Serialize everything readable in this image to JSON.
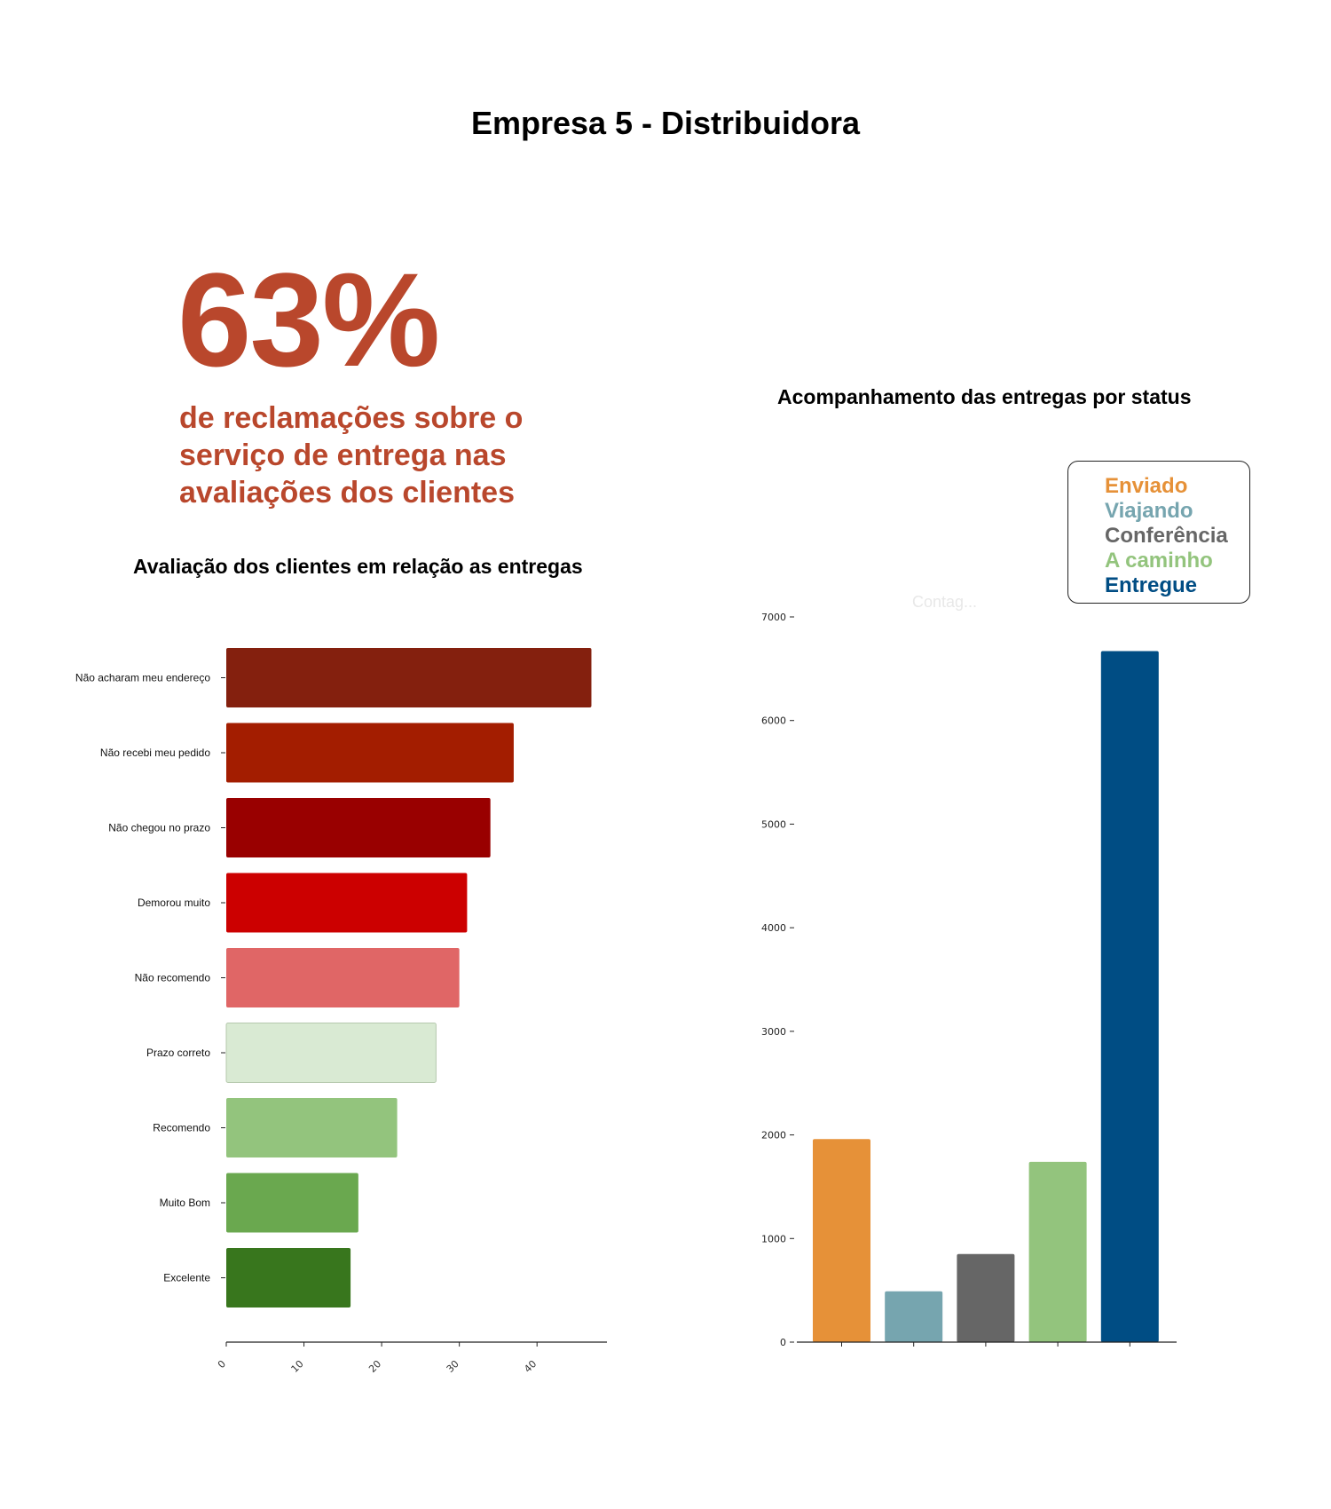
{
  "page": {
    "title": "Empresa 5 - Distribuidora"
  },
  "kpi": {
    "value": "63%",
    "description": "de reclamações sobre o serviço de entrega nas avaliações dos clientes",
    "color": "#b9472c"
  },
  "chart_data": [
    {
      "type": "bar",
      "orientation": "horizontal",
      "title": "Avaliação dos clientes em relação as entregas",
      "xlabel": "",
      "ylabel": "",
      "categories": [
        "Não acharam meu endereço",
        "Não recebi meu pedido",
        "Não chegou no prazo",
        "Demorou muito",
        "Não recomendo",
        "Prazo correto",
        "Recomendo",
        "Muito Bom",
        "Excelente"
      ],
      "values": [
        47,
        37,
        34,
        31,
        30,
        27,
        22,
        17,
        16
      ],
      "colors": [
        "#84200e",
        "#a31d00",
        "#990000",
        "#cc0000",
        "#e06666",
        "#d9ead3",
        "#93c47d",
        "#6aa84f",
        "#38761d"
      ],
      "xlim": [
        0,
        49
      ],
      "xticks": [
        0,
        10,
        20,
        30,
        40
      ],
      "grid": false,
      "legend": "none"
    },
    {
      "type": "bar",
      "orientation": "vertical",
      "title": "Acompanhamento das entregas por status",
      "xlabel": "",
      "ylabel": "",
      "categories": [
        "Enviado",
        "Viajando",
        "Conferência",
        "A caminho",
        "Entregue"
      ],
      "values": [
        1960,
        490,
        850,
        1740,
        6670
      ],
      "colors": [
        "#e69138",
        "#76a5af",
        "#666666",
        "#93c47d",
        "#004d84"
      ],
      "ylim": [
        0,
        7000
      ],
      "yticks": [
        0,
        1000,
        2000,
        3000,
        4000,
        5000,
        6000,
        7000
      ],
      "grid": false,
      "legend": "top-right",
      "faint_label": "Contag..."
    }
  ]
}
